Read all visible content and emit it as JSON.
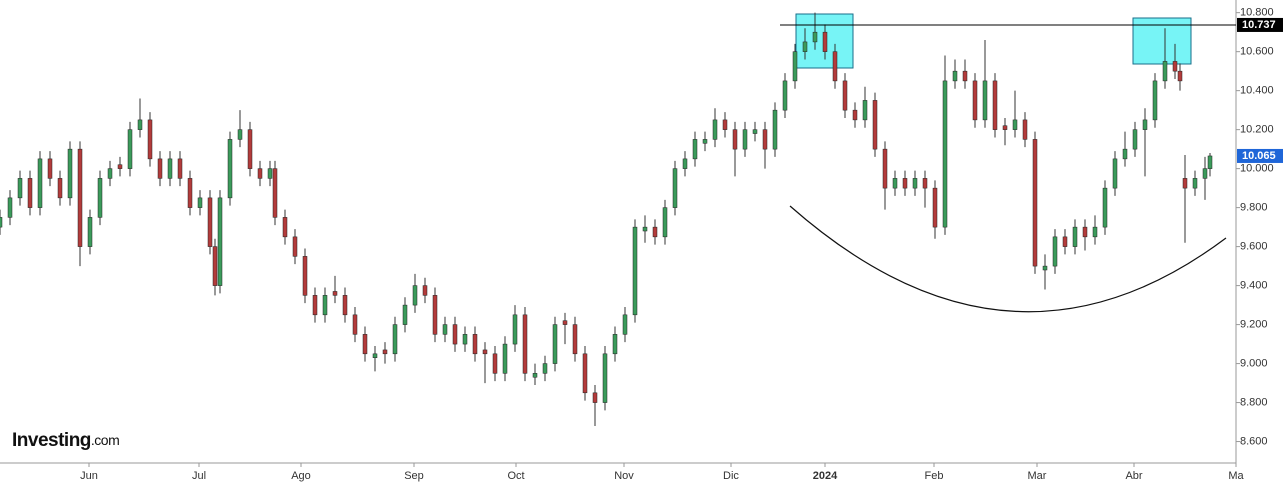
{
  "chart_data": {
    "type": "candlestick",
    "logo": "Investing",
    "logo_suffix": ".com",
    "up_color": "#3b9b5b",
    "down_color": "#b33b3b",
    "wick_color": "#333333",
    "xlim": [
      0,
      247.2
    ],
    "xticks": [
      {
        "value": 17.8,
        "label": "Jun"
      },
      {
        "value": 39.8,
        "label": "Jul"
      },
      {
        "value": 60.2,
        "label": "Ago"
      },
      {
        "value": 82.8,
        "label": "Sep"
      },
      {
        "value": 103.2,
        "label": "Oct"
      },
      {
        "value": 124.8,
        "label": "Nov"
      },
      {
        "value": 146.2,
        "label": "Dic"
      },
      {
        "value": 165,
        "label": "2024"
      },
      {
        "value": 186.8,
        "label": "Feb"
      },
      {
        "value": 207.4,
        "label": "Mar"
      },
      {
        "value": 226.8,
        "label": "Abr"
      },
      {
        "value": 247.2,
        "label": "Ma"
      }
    ],
    "ylim": [
      8.49,
      10.865
    ],
    "yticks": [
      {
        "value": 8.6,
        "label": "8.600"
      },
      {
        "value": 8.8,
        "label": "8.800"
      },
      {
        "value": 9,
        "label": "9.000"
      },
      {
        "value": 9.2,
        "label": "9.200"
      },
      {
        "value": 9.4,
        "label": "9.400"
      },
      {
        "value": 9.6,
        "label": "9.600"
      },
      {
        "value": 9.8,
        "label": "9.800"
      },
      {
        "value": 10,
        "label": "10.000"
      },
      {
        "value": 10.2,
        "label": "10.200"
      },
      {
        "value": 10.4,
        "label": "10.400"
      },
      {
        "value": 10.6,
        "label": "10.600"
      },
      {
        "value": 10.8,
        "label": "10.800"
      }
    ],
    "markers": [
      {
        "value": 10.737,
        "color": "#000000",
        "line": true
      },
      {
        "value": 10.065,
        "color": "#1f66d8",
        "line": false
      }
    ],
    "x": [
      0,
      2,
      4,
      6,
      8,
      10,
      12,
      14,
      16,
      18,
      20,
      22,
      24,
      26,
      28,
      30,
      32,
      34,
      36,
      38,
      40,
      42,
      43,
      44,
      46,
      48,
      50,
      52,
      54,
      55,
      57,
      59,
      61,
      63,
      65,
      67,
      69,
      71,
      73,
      75,
      77,
      79,
      81,
      83,
      85,
      87,
      89,
      91,
      93,
      95,
      97,
      99,
      101,
      103,
      105,
      107,
      109,
      111,
      113,
      115,
      117,
      119,
      121,
      123,
      125,
      127,
      129,
      131,
      133,
      135,
      137,
      139,
      141,
      143,
      145,
      147,
      149,
      151,
      153,
      155,
      157,
      159,
      161,
      163,
      165,
      167,
      169,
      171,
      173,
      175,
      177,
      179,
      181,
      183,
      185,
      187,
      189,
      191,
      193,
      195,
      197,
      199,
      201,
      203,
      205,
      207,
      209,
      211,
      213,
      215,
      217,
      219,
      221,
      223,
      225,
      227,
      229,
      231,
      233,
      235,
      236,
      237,
      239,
      241,
      242
    ],
    "values": [
      [
        9.7,
        9.79,
        9.66,
        9.75
      ],
      [
        9.75,
        9.89,
        9.71,
        9.85
      ],
      [
        9.85,
        9.99,
        9.81,
        9.95
      ],
      [
        9.95,
        9.99,
        9.76,
        9.8
      ],
      [
        9.8,
        10.09,
        9.76,
        10.05
      ],
      [
        10.05,
        10.09,
        9.91,
        9.95
      ],
      [
        9.95,
        9.99,
        9.81,
        9.85
      ],
      [
        9.85,
        10.14,
        9.81,
        10.1
      ],
      [
        10.1,
        10.14,
        9.5,
        9.6
      ],
      [
        9.6,
        9.79,
        9.56,
        9.75
      ],
      [
        9.75,
        9.99,
        9.71,
        9.95
      ],
      [
        9.95,
        10.04,
        9.91,
        10.0
      ],
      [
        10.02,
        10.06,
        9.96,
        10.0
      ],
      [
        10.0,
        10.24,
        9.96,
        10.2
      ],
      [
        10.2,
        10.36,
        10.16,
        10.25
      ],
      [
        10.25,
        10.29,
        10.01,
        10.05
      ],
      [
        10.05,
        10.09,
        9.91,
        9.95
      ],
      [
        9.95,
        10.09,
        9.91,
        10.05
      ],
      [
        10.05,
        10.09,
        9.91,
        9.95
      ],
      [
        9.95,
        9.99,
        9.76,
        9.8
      ],
      [
        9.8,
        9.89,
        9.76,
        9.85
      ],
      [
        9.85,
        9.89,
        9.56,
        9.6
      ],
      [
        9.6,
        9.64,
        9.35,
        9.4
      ],
      [
        9.4,
        9.89,
        9.36,
        9.85
      ],
      [
        9.85,
        10.19,
        9.81,
        10.15
      ],
      [
        10.15,
        10.3,
        10.11,
        10.2
      ],
      [
        10.2,
        10.24,
        9.96,
        10.0
      ],
      [
        10.0,
        10.04,
        9.91,
        9.95
      ],
      [
        9.95,
        10.04,
        9.91,
        10.0
      ],
      [
        10.0,
        10.04,
        9.71,
        9.75
      ],
      [
        9.75,
        9.79,
        9.61,
        9.65
      ],
      [
        9.65,
        9.69,
        9.51,
        9.55
      ],
      [
        9.55,
        9.59,
        9.31,
        9.35
      ],
      [
        9.35,
        9.39,
        9.21,
        9.25
      ],
      [
        9.25,
        9.39,
        9.21,
        9.35
      ],
      [
        9.37,
        9.45,
        9.31,
        9.35
      ],
      [
        9.35,
        9.39,
        9.21,
        9.25
      ],
      [
        9.25,
        9.29,
        9.11,
        9.15
      ],
      [
        9.15,
        9.19,
        9.01,
        9.05
      ],
      [
        9.03,
        9.09,
        8.96,
        9.05
      ],
      [
        9.07,
        9.11,
        9.0,
        9.05
      ],
      [
        9.05,
        9.24,
        9.01,
        9.2
      ],
      [
        9.2,
        9.34,
        9.16,
        9.3
      ],
      [
        9.3,
        9.46,
        9.26,
        9.4
      ],
      [
        9.4,
        9.44,
        9.31,
        9.35
      ],
      [
        9.35,
        9.39,
        9.11,
        9.15
      ],
      [
        9.15,
        9.24,
        9.11,
        9.2
      ],
      [
        9.2,
        9.24,
        9.06,
        9.1
      ],
      [
        9.1,
        9.19,
        9.06,
        9.15
      ],
      [
        9.15,
        9.19,
        9.01,
        9.05
      ],
      [
        9.07,
        9.11,
        8.9,
        9.05
      ],
      [
        9.05,
        9.09,
        8.91,
        8.95
      ],
      [
        8.95,
        9.14,
        8.91,
        9.1
      ],
      [
        9.1,
        9.3,
        9.06,
        9.25
      ],
      [
        9.25,
        9.29,
        8.91,
        8.95
      ],
      [
        8.93,
        9.0,
        8.89,
        8.95
      ],
      [
        8.95,
        9.04,
        8.91,
        9.0
      ],
      [
        9.0,
        9.24,
        8.96,
        9.2
      ],
      [
        9.22,
        9.26,
        9.1,
        9.2
      ],
      [
        9.2,
        9.24,
        9.01,
        9.05
      ],
      [
        9.05,
        9.09,
        8.81,
        8.85
      ],
      [
        8.85,
        8.89,
        8.68,
        8.8
      ],
      [
        8.8,
        9.09,
        8.76,
        9.05
      ],
      [
        9.05,
        9.19,
        9.01,
        9.15
      ],
      [
        9.15,
        9.29,
        9.11,
        9.25
      ],
      [
        9.25,
        9.74,
        9.21,
        9.7
      ],
      [
        9.68,
        9.76,
        9.62,
        9.7
      ],
      [
        9.7,
        9.74,
        9.61,
        9.65
      ],
      [
        9.65,
        9.84,
        9.61,
        9.8
      ],
      [
        9.8,
        10.04,
        9.76,
        10.0
      ],
      [
        10.0,
        10.09,
        9.96,
        10.05
      ],
      [
        10.05,
        10.19,
        10.01,
        10.15
      ],
      [
        10.13,
        10.19,
        10.09,
        10.15
      ],
      [
        10.15,
        10.31,
        10.11,
        10.25
      ],
      [
        10.25,
        10.29,
        10.16,
        10.2
      ],
      [
        10.2,
        10.24,
        9.96,
        10.1
      ],
      [
        10.1,
        10.24,
        10.06,
        10.2
      ],
      [
        10.18,
        10.24,
        10.14,
        10.2
      ],
      [
        10.2,
        10.24,
        10.0,
        10.1
      ],
      [
        10.1,
        10.34,
        10.06,
        10.3
      ],
      [
        10.3,
        10.49,
        10.26,
        10.45
      ],
      [
        10.45,
        10.64,
        10.41,
        10.6
      ],
      [
        10.6,
        10.72,
        10.56,
        10.65
      ],
      [
        10.65,
        10.8,
        10.61,
        10.7
      ],
      [
        10.7,
        10.74,
        10.56,
        10.6
      ],
      [
        10.6,
        10.64,
        10.41,
        10.45
      ],
      [
        10.45,
        10.49,
        10.26,
        10.3
      ],
      [
        10.3,
        10.34,
        10.21,
        10.25
      ],
      [
        10.25,
        10.42,
        10.21,
        10.35
      ],
      [
        10.35,
        10.39,
        10.06,
        10.1
      ],
      [
        10.1,
        10.14,
        9.79,
        9.9
      ],
      [
        9.9,
        9.99,
        9.86,
        9.95
      ],
      [
        9.95,
        9.99,
        9.86,
        9.9
      ],
      [
        9.9,
        9.99,
        9.86,
        9.95
      ],
      [
        9.95,
        9.99,
        9.8,
        9.9
      ],
      [
        9.9,
        9.94,
        9.64,
        9.7
      ],
      [
        9.7,
        10.58,
        9.66,
        10.45
      ],
      [
        10.45,
        10.56,
        10.41,
        10.5
      ],
      [
        10.5,
        10.56,
        10.41,
        10.45
      ],
      [
        10.45,
        10.49,
        10.21,
        10.25
      ],
      [
        10.25,
        10.66,
        10.21,
        10.45
      ],
      [
        10.45,
        10.49,
        10.16,
        10.2
      ],
      [
        10.22,
        10.26,
        10.12,
        10.2
      ],
      [
        10.2,
        10.4,
        10.16,
        10.25
      ],
      [
        10.25,
        10.29,
        10.11,
        10.15
      ],
      [
        10.15,
        10.19,
        9.46,
        9.5
      ],
      [
        9.48,
        9.56,
        9.38,
        9.5
      ],
      [
        9.5,
        9.69,
        9.46,
        9.65
      ],
      [
        9.65,
        9.69,
        9.56,
        9.6
      ],
      [
        9.6,
        9.74,
        9.56,
        9.7
      ],
      [
        9.7,
        9.74,
        9.58,
        9.65
      ],
      [
        9.65,
        9.76,
        9.61,
        9.7
      ],
      [
        9.7,
        9.94,
        9.66,
        9.9
      ],
      [
        9.9,
        10.09,
        9.86,
        10.05
      ],
      [
        10.05,
        10.19,
        10.01,
        10.1
      ],
      [
        10.1,
        10.24,
        10.06,
        10.2
      ],
      [
        10.2,
        10.31,
        9.96,
        10.25
      ],
      [
        10.25,
        10.49,
        10.21,
        10.45
      ],
      [
        10.45,
        10.72,
        10.41,
        10.55
      ],
      [
        10.55,
        10.64,
        10.46,
        10.5
      ],
      [
        10.5,
        10.54,
        10.4,
        10.45
      ],
      [
        9.95,
        10.07,
        9.62,
        9.9
      ],
      [
        9.9,
        9.99,
        9.86,
        9.95
      ],
      [
        9.95,
        10.06,
        9.84,
        10.0
      ],
      [
        10.0,
        10.08,
        9.96,
        10.065
      ]
    ]
  }
}
